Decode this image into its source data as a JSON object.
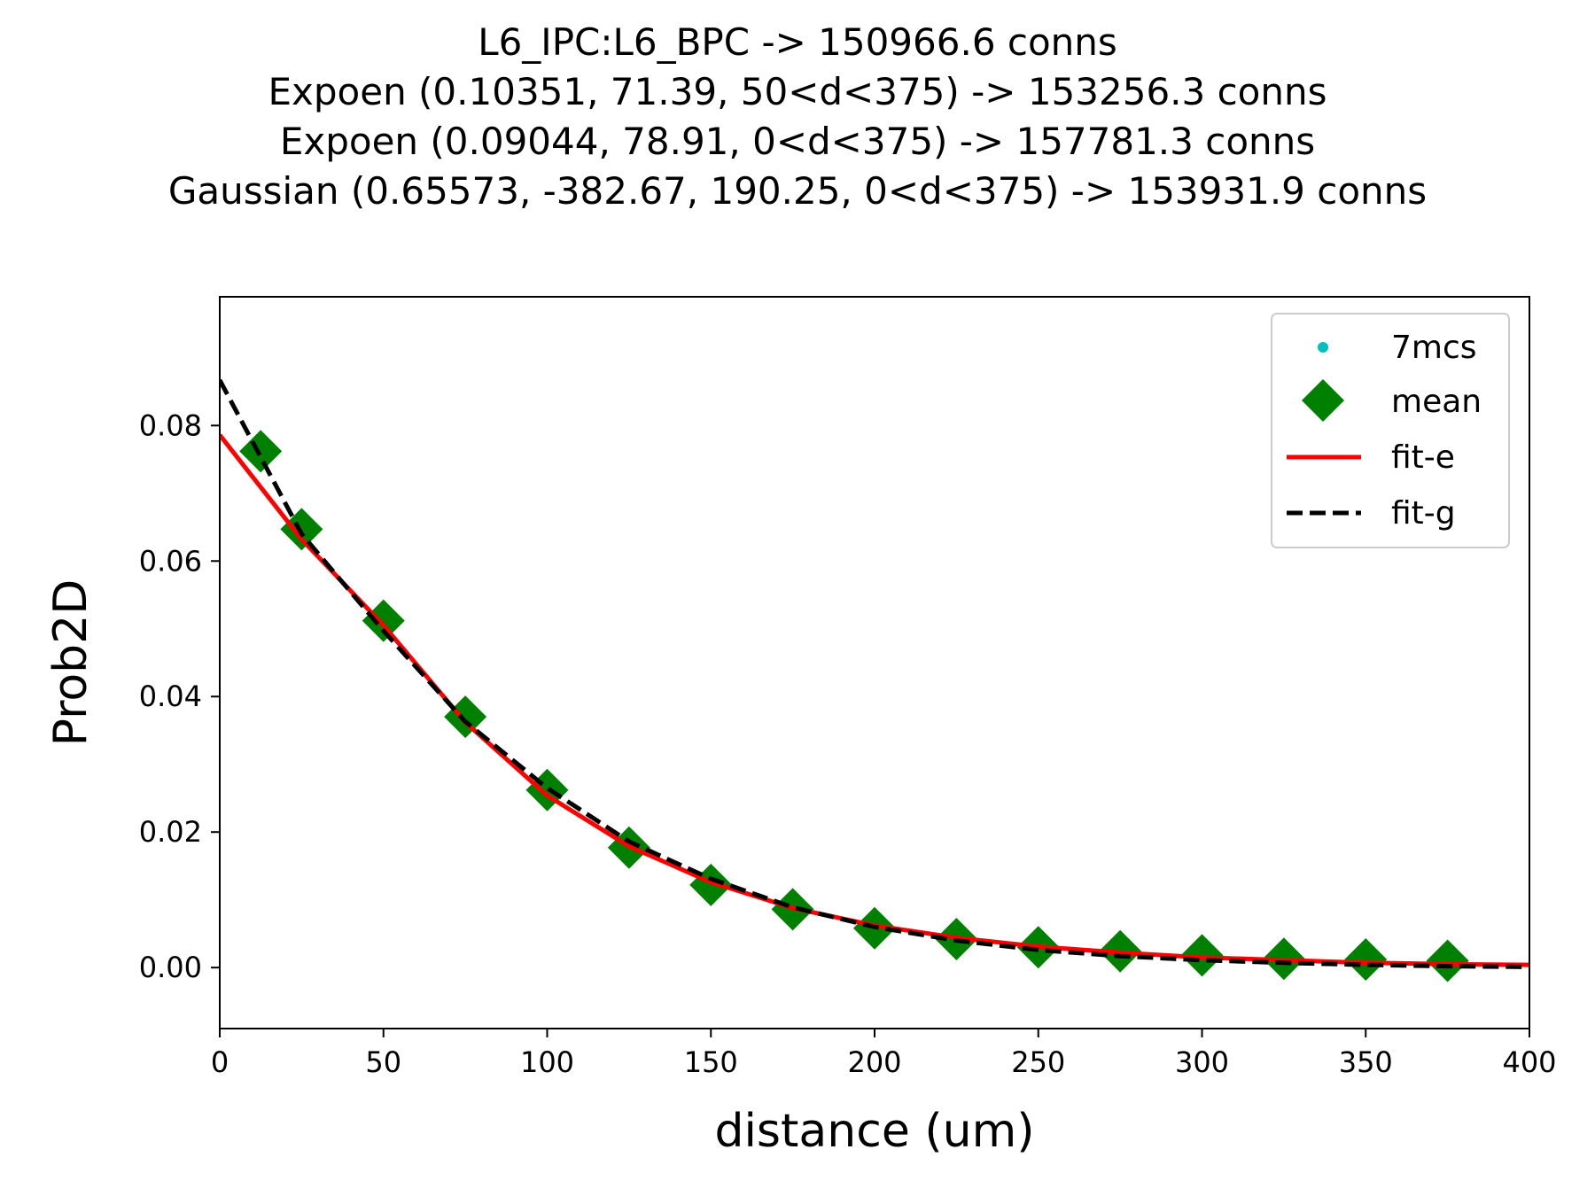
{
  "chart_data": {
    "type": "scatter",
    "title": [
      "L6_IPC:L6_BPC -> 150966.6 conns",
      "Expoen (0.10351, 71.39, 50<d<375) -> 153256.3 conns",
      "Expoen (0.09044, 78.91, 0<d<375) -> 157781.3 conns",
      "Gaussian (0.65573, -382.67, 190.25, 0<d<375) -> 153931.9 conns"
    ],
    "xlabel": "distance (um)",
    "ylabel": "Prob2D",
    "xlim": [
      0,
      400
    ],
    "ylim": [
      -0.009,
      0.099
    ],
    "xticks": [
      0,
      50,
      100,
      150,
      200,
      250,
      300,
      350,
      400
    ],
    "xtick_labels": [
      "0",
      "50",
      "100",
      "150",
      "200",
      "250",
      "300",
      "350",
      "400"
    ],
    "yticks": [
      0.0,
      0.02,
      0.04,
      0.06,
      0.08
    ],
    "ytick_labels": [
      "0.00",
      "0.02",
      "0.04",
      "0.06",
      "0.08"
    ],
    "grid": false,
    "legend_position": "top-right",
    "series": [
      {
        "name": "7mcs",
        "kind": "points",
        "marker": "dot",
        "color": "#00bfbf",
        "x": [],
        "y": []
      },
      {
        "name": "mean",
        "kind": "points",
        "marker": "diamond",
        "color": "#008000",
        "x": [
          12.5,
          25,
          50,
          75,
          100,
          125,
          150,
          175,
          200,
          225,
          250,
          275,
          300,
          325,
          350,
          375
        ],
        "y": [
          0.0762,
          0.0647,
          0.0512,
          0.037,
          0.0262,
          0.0177,
          0.0122,
          0.0086,
          0.0058,
          0.0042,
          0.003,
          0.0024,
          0.0018,
          0.0013,
          0.0012,
          0.001
        ]
      },
      {
        "name": "fit-e",
        "kind": "line",
        "color": "#ff0000",
        "dash": "solid",
        "x": [
          0,
          25,
          50,
          75,
          100,
          125,
          150,
          175,
          200,
          225,
          250,
          275,
          300,
          325,
          350,
          375,
          400
        ],
        "y": [
          0.0786,
          0.0632,
          0.0505,
          0.0362,
          0.0254,
          0.0179,
          0.0126,
          0.0088,
          0.0062,
          0.0044,
          0.0031,
          0.0022,
          0.0015,
          0.0011,
          0.0007,
          0.0005,
          0.0004
        ]
      },
      {
        "name": "fit-g",
        "kind": "line",
        "color": "#000000",
        "dash": "dashed",
        "x": [
          0,
          25,
          50,
          75,
          100,
          125,
          150,
          175,
          200,
          225,
          250,
          275,
          300,
          325,
          350,
          375,
          400
        ],
        "y": [
          0.0867,
          0.064,
          0.0497,
          0.0363,
          0.0265,
          0.0186,
          0.0131,
          0.0089,
          0.006,
          0.004,
          0.0026,
          0.0017,
          0.0011,
          0.0007,
          0.0004,
          0.0002,
          0.0001
        ]
      }
    ]
  }
}
